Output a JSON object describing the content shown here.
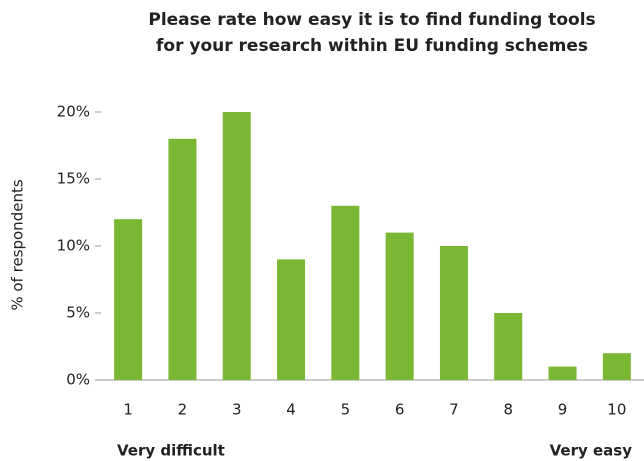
{
  "chart_data": {
    "type": "bar",
    "title": [
      "Please rate how easy it is to find funding tools",
      "for your research within EU funding schemes"
    ],
    "y_label": "% of respondents",
    "categories": [
      "1",
      "2",
      "3",
      "4",
      "5",
      "6",
      "7",
      "8",
      "9",
      "10"
    ],
    "values": [
      12,
      18,
      20,
      9,
      13,
      11,
      10,
      5,
      1,
      2
    ],
    "color": "#7ab733",
    "ylim": [
      0,
      20
    ],
    "yticks": [
      {
        "value": 0,
        "label": "0%"
      },
      {
        "value": 5,
        "label": "5%"
      },
      {
        "value": 10,
        "label": "10%"
      },
      {
        "value": 15,
        "label": "15%"
      },
      {
        "value": 20,
        "label": "20%"
      }
    ],
    "annotations": [
      "Very difficult",
      "Very easy"
    ]
  }
}
